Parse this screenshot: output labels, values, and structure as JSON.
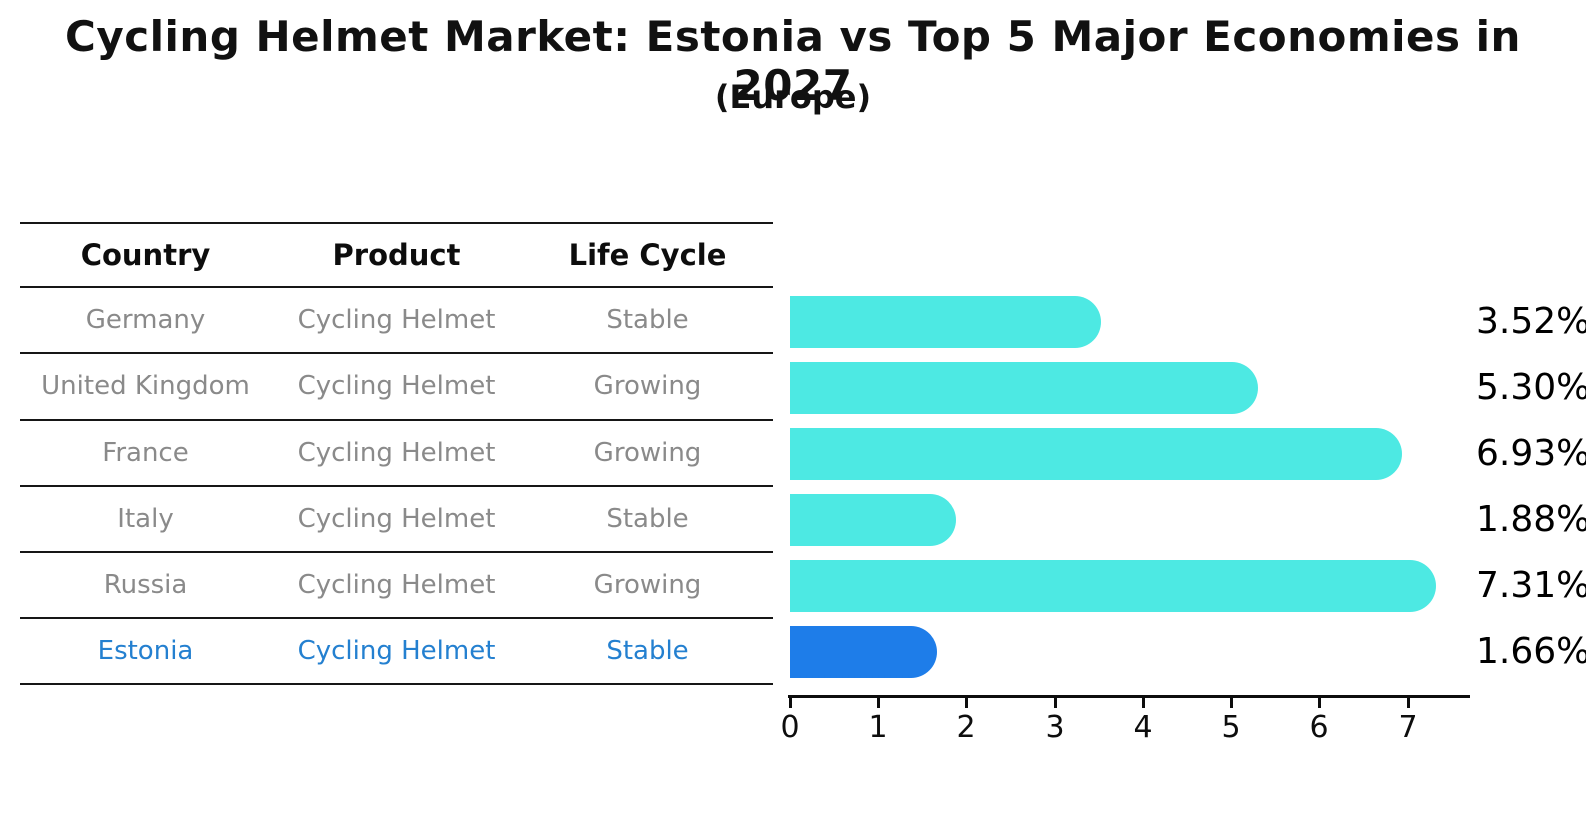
{
  "title": "Cycling Helmet Market: Estonia vs Top 5 Major Economies in 2027",
  "subtitle": "(Europe)",
  "table": {
    "headers": {
      "country": "Country",
      "product": "Product",
      "life_cycle": "Life Cycle"
    },
    "rows": [
      {
        "country": "Germany",
        "product": "Cycling Helmet",
        "life_cycle": "Stable"
      },
      {
        "country": "United Kingdom",
        "product": "Cycling Helmet",
        "life_cycle": "Growing"
      },
      {
        "country": "France",
        "product": "Cycling Helmet",
        "life_cycle": "Growing"
      },
      {
        "country": "Italy",
        "product": "Cycling Helmet",
        "life_cycle": "Stable"
      },
      {
        "country": "Russia",
        "product": "Cycling Helmet",
        "life_cycle": "Growing"
      },
      {
        "country": "Estonia",
        "product": "Cycling Helmet",
        "life_cycle": "Stable"
      }
    ]
  },
  "chart_data": {
    "type": "bar",
    "orientation": "horizontal",
    "title": "Cycling Helmet Market: Estonia vs Top 5 Major Economies in 2027",
    "subtitle": "(Europe)",
    "categories": [
      "Germany",
      "United Kingdom",
      "France",
      "Italy",
      "Russia",
      "Estonia"
    ],
    "values": [
      3.52,
      5.3,
      6.93,
      1.88,
      7.31,
      1.66
    ],
    "value_labels": [
      "3.52%",
      "5.30%",
      "6.93%",
      "1.88%",
      "7.31%",
      "1.66%"
    ],
    "x_ticks": [
      "0",
      "1",
      "2",
      "3",
      "4",
      "5",
      "6",
      "7"
    ],
    "xlim": [
      0,
      7.7
    ],
    "grid": false,
    "legend": false,
    "bar_color": "#4de9e3",
    "highlight_color": "#1e7de9",
    "highlight_index": 5,
    "highlight_category": "Estonia",
    "highlight_bar_style": "dotted-border"
  },
  "colors": {
    "background": "#ffffff",
    "bar": "#4de9e3",
    "highlight": "#1e7de9",
    "table_text": "#8a8a8a",
    "header_text": "#0d0d0d",
    "highlight_text": "#2480d0",
    "line": "#161616"
  }
}
